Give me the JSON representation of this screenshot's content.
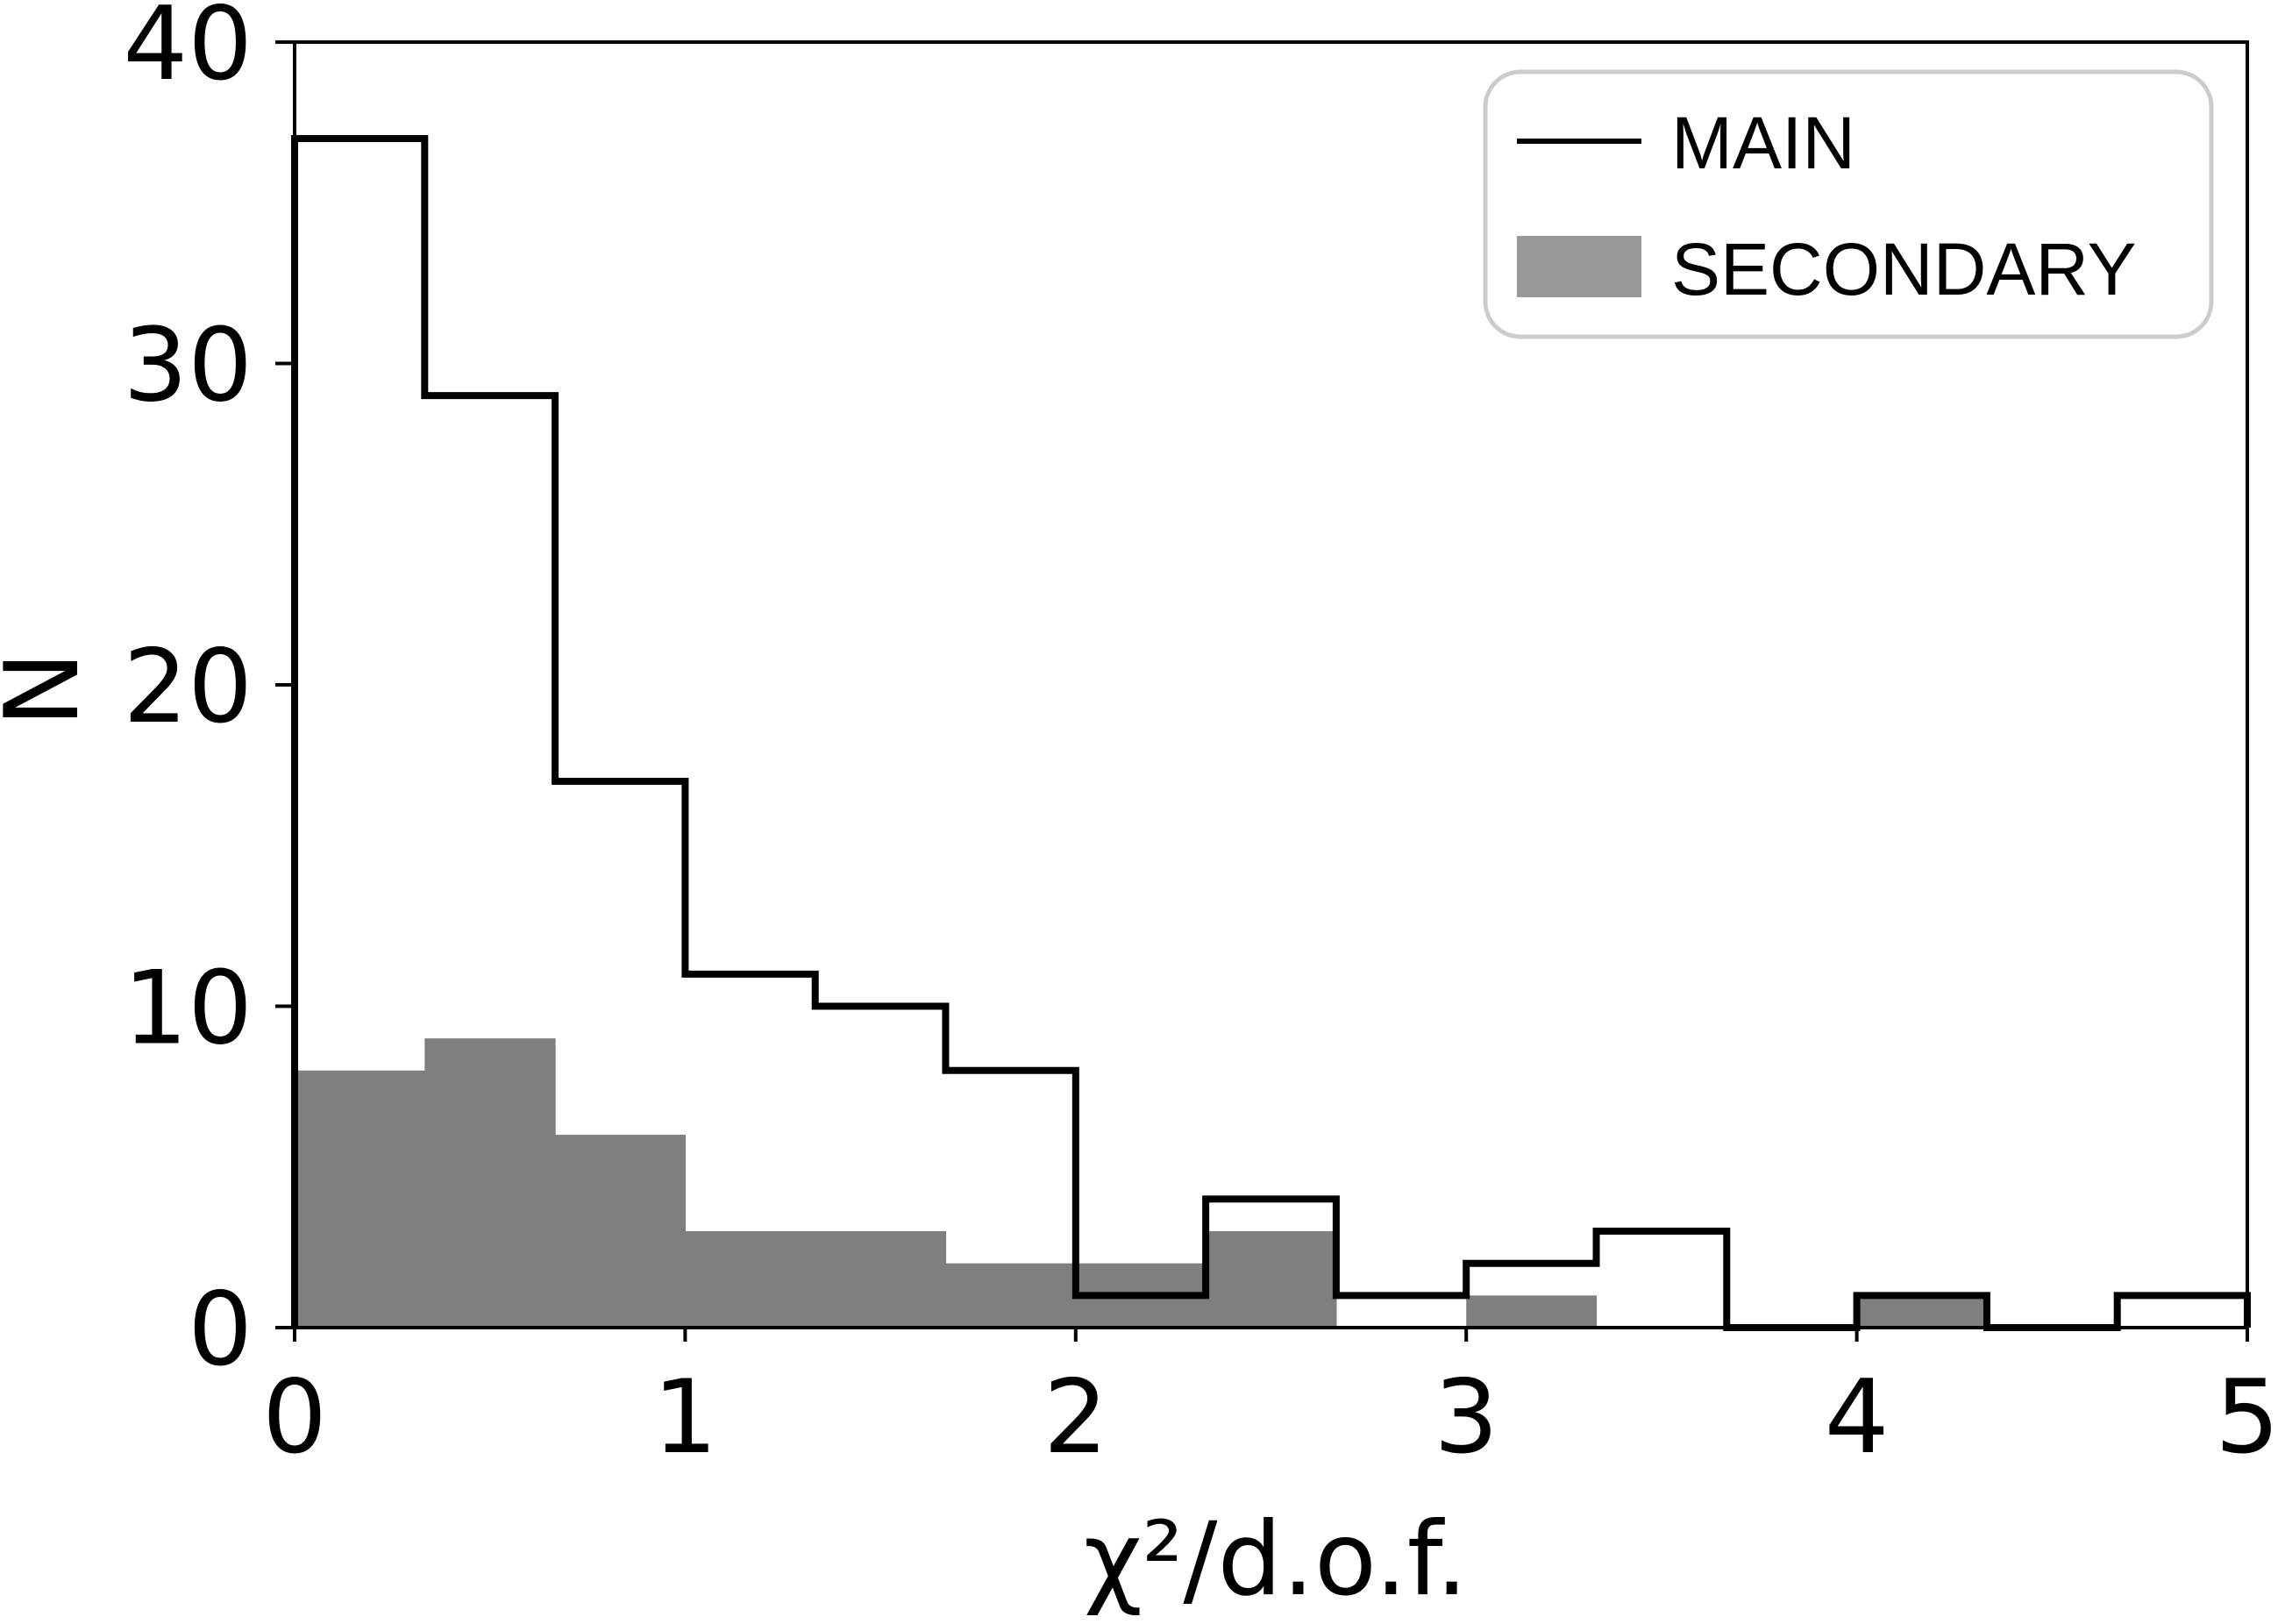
{
  "chart_data": {
    "type": "histogram",
    "xlabel": "χ²/d.o.f.",
    "ylabel": "N",
    "xlim": [
      0,
      5
    ],
    "ylim": [
      0,
      40
    ],
    "xticks": [
      0,
      1,
      2,
      3,
      4,
      5
    ],
    "yticks": [
      0,
      10,
      20,
      30,
      40
    ],
    "bin_edges": [
      0,
      0.333,
      0.667,
      1.0,
      1.333,
      1.667,
      2.0,
      2.333,
      2.667,
      3.0,
      3.333,
      3.667,
      4.0,
      4.333,
      4.667,
      5.0
    ],
    "legend_position": "upper right",
    "series": [
      {
        "name": "MAIN",
        "style": "step-outline",
        "color": "#000000",
        "counts": [
          37,
          29,
          17,
          11,
          10,
          8,
          1,
          4,
          1,
          2,
          3,
          0,
          1,
          0,
          1
        ]
      },
      {
        "name": "SECONDARY",
        "style": "filled",
        "color": "#7f7f7f",
        "counts": [
          8,
          9,
          6,
          3,
          3,
          2,
          2,
          3,
          0,
          1,
          0,
          0,
          1,
          0,
          0
        ]
      }
    ],
    "legend": {
      "main_label": "MAIN",
      "secondary_label": "SECONDARY",
      "secondary_swatch_color": "#999999"
    }
  }
}
